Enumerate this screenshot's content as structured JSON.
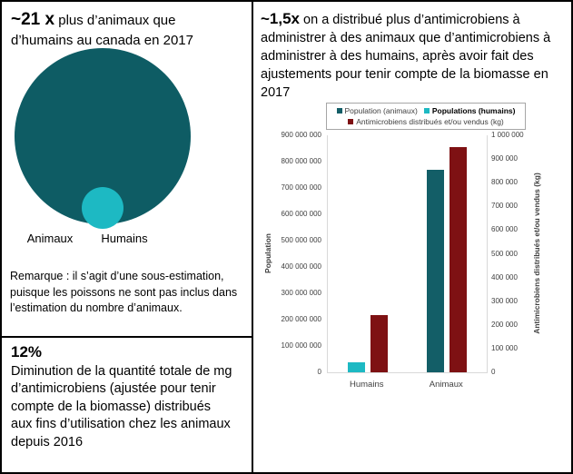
{
  "panels": {
    "animals_vs_humans": {
      "title_bold": "~21 x",
      "title_rest": " plus d’animaux que d’humains au canada en 2017",
      "animals_label": "Animaux",
      "humans_label": "Humains",
      "note": "Remarque : il s’agit d’une sous-estimation, puisque les poissons ne sont pas inclus dans l’estimation du nombre d’animaux.",
      "colors": {
        "animals_circle": "#0e5c64",
        "humans_circle": "#1db9c3"
      }
    },
    "reduction": {
      "stat": "12%",
      "text": "Diminution de la quantité totale de mg d’antimicrobiens (ajustée pour tenir compte de la biomasse) distribués aux fins d’utilisation chez les animaux depuis 2016"
    },
    "distribution": {
      "title_bold": "~1,5x",
      "title_rest": " on a distribué plus d’antimicrobiens à administrer à des animaux que d’antimicrobiens à administrer à des humains, après avoir fait des ajustements pour tenir compte de la biomasse en 2017"
    }
  },
  "chart_data": {
    "type": "bar",
    "title": "",
    "categories": [
      "Humains",
      "Animaux"
    ],
    "groups": [
      {
        "category": "Humains",
        "bars": [
          {
            "series": "Populations (humains)",
            "value": 37000000,
            "axis": "left",
            "color": "#1db9c3"
          },
          {
            "series": "Antimicrobiens distribués et/ou vendus (kg)",
            "value": 240000,
            "axis": "right",
            "color": "#7e1113"
          }
        ]
      },
      {
        "category": "Animaux",
        "bars": [
          {
            "series": "Population (animaux)",
            "value": 770000000,
            "axis": "left",
            "color": "#135e67"
          },
          {
            "series": "Antimicrobiens distribués et/ou vendus (kg)",
            "value": 950000,
            "axis": "right",
            "color": "#7e1113"
          }
        ]
      }
    ],
    "legend": [
      {
        "label": "Population (animaux)",
        "color": "#135e67",
        "bold": false
      },
      {
        "label": "Populations (humains)",
        "color": "#1db9c3",
        "bold": true
      },
      {
        "label": "Antimicrobiens distribués et/ou vendus (kg)",
        "color": "#7e1113",
        "bold": false
      }
    ],
    "left_axis": {
      "title": "Population",
      "min": 0,
      "max": 900000000,
      "step": 100000000
    },
    "right_axis": {
      "title": "Antimicrobiens distribués et/ou vendus (kg)",
      "min": 0,
      "max": 1000000,
      "step": 100000
    },
    "legend_position": "top",
    "grid": false
  }
}
